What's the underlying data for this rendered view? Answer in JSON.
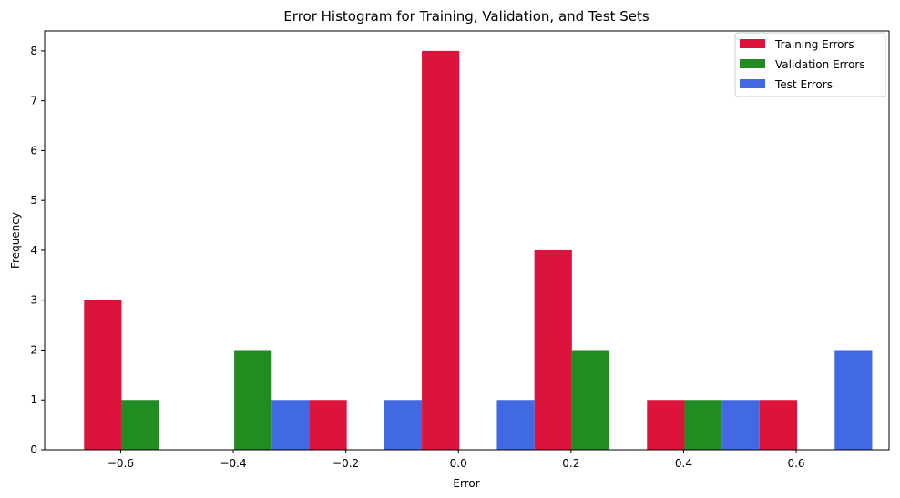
{
  "chart_data": {
    "type": "bar",
    "title": "Error Histogram for Training, Validation, and Test Sets",
    "xlabel": "Error",
    "ylabel": "Frequency",
    "xlim": [
      -0.735,
      0.765
    ],
    "ylim": [
      0,
      8.4
    ],
    "xticks": [
      -0.6,
      -0.4,
      -0.2,
      0.0,
      0.2,
      0.4,
      0.6
    ],
    "xtick_labels": [
      "−0.6",
      "−0.4",
      "−0.2",
      "0.0",
      "0.2",
      "0.4",
      "0.6"
    ],
    "yticks": [
      0,
      1,
      2,
      3,
      4,
      5,
      6,
      7,
      8
    ],
    "ytick_labels": [
      "0",
      "1",
      "2",
      "3",
      "4",
      "5",
      "6",
      "7",
      "8"
    ],
    "grid": false,
    "legend_position": "top-right",
    "bin_edges": [
      -0.665,
      -0.465,
      -0.265,
      -0.065,
      0.135,
      0.335,
      0.535,
      0.735
    ],
    "series": [
      {
        "name": "Training Errors",
        "color": "#dc143c",
        "values": [
          3,
          0,
          1,
          8,
          4,
          1,
          1
        ]
      },
      {
        "name": "Validation Errors",
        "color": "#228b22",
        "values": [
          1,
          2,
          0,
          0,
          2,
          1,
          0
        ]
      },
      {
        "name": "Test Errors",
        "color": "#4169e1",
        "values": [
          0,
          1,
          1,
          1,
          0,
          1,
          2
        ]
      }
    ]
  }
}
